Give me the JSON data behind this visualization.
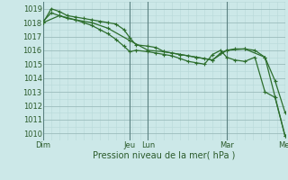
{
  "title": "",
  "xlabel": "Pression niveau de la mer( hPa )",
  "bg_color": "#cce8e8",
  "grid_minor_color": "#b8d8d8",
  "grid_major_color": "#9bbcbc",
  "line_color": "#2d6e2d",
  "sep_color": "#7a9a9a",
  "ylim": [
    1009.5,
    1019.5
  ],
  "yticks": [
    1010,
    1011,
    1012,
    1013,
    1014,
    1015,
    1016,
    1017,
    1018,
    1019
  ],
  "xlim": [
    0,
    120
  ],
  "day_positions": [
    0,
    43,
    52,
    91,
    120
  ],
  "day_labels": [
    "Dim",
    "Jeu",
    "Lun",
    "Mar",
    "Mer"
  ],
  "line1_x": [
    0,
    4,
    8,
    12,
    16,
    20,
    24,
    28,
    32,
    36,
    40,
    43,
    46,
    52,
    56,
    60,
    64,
    68,
    72,
    76,
    80,
    84,
    88,
    91,
    95,
    100,
    105,
    110,
    115,
    120
  ],
  "line1_y": [
    1018.0,
    1019.0,
    1018.8,
    1018.5,
    1018.4,
    1018.3,
    1018.2,
    1018.1,
    1018.0,
    1017.9,
    1017.5,
    1016.9,
    1016.4,
    1016.3,
    1016.2,
    1015.9,
    1015.8,
    1015.7,
    1015.6,
    1015.5,
    1015.4,
    1015.3,
    1015.8,
    1016.0,
    1016.1,
    1016.1,
    1016.0,
    1015.5,
    1013.8,
    1011.5
  ],
  "line2_x": [
    0,
    4,
    8,
    12,
    16,
    20,
    24,
    28,
    32,
    36,
    40,
    43,
    46,
    52,
    56,
    60,
    64,
    68,
    72,
    76,
    80,
    84,
    88,
    91,
    95,
    100,
    105,
    110,
    115,
    120
  ],
  "line2_y": [
    1018.1,
    1018.7,
    1018.5,
    1018.3,
    1018.2,
    1018.0,
    1017.8,
    1017.5,
    1017.2,
    1016.8,
    1016.3,
    1015.9,
    1016.0,
    1015.9,
    1015.8,
    1015.7,
    1015.6,
    1015.4,
    1015.2,
    1015.1,
    1015.0,
    1015.7,
    1016.0,
    1015.5,
    1015.3,
    1015.2,
    1015.5,
    1013.0,
    1012.6,
    1009.8
  ],
  "line3_x": [
    0,
    8,
    16,
    24,
    32,
    43,
    52,
    60,
    68,
    76,
    84,
    91,
    100,
    110,
    120
  ],
  "line3_y": [
    1018.0,
    1018.5,
    1018.2,
    1018.0,
    1017.6,
    1016.7,
    1016.0,
    1015.9,
    1015.7,
    1015.5,
    1015.3,
    1016.0,
    1016.1,
    1015.5,
    1009.8
  ],
  "marker_size": 2.5,
  "linewidth": 0.9,
  "xlabel_fontsize": 7,
  "tick_fontsize": 6
}
